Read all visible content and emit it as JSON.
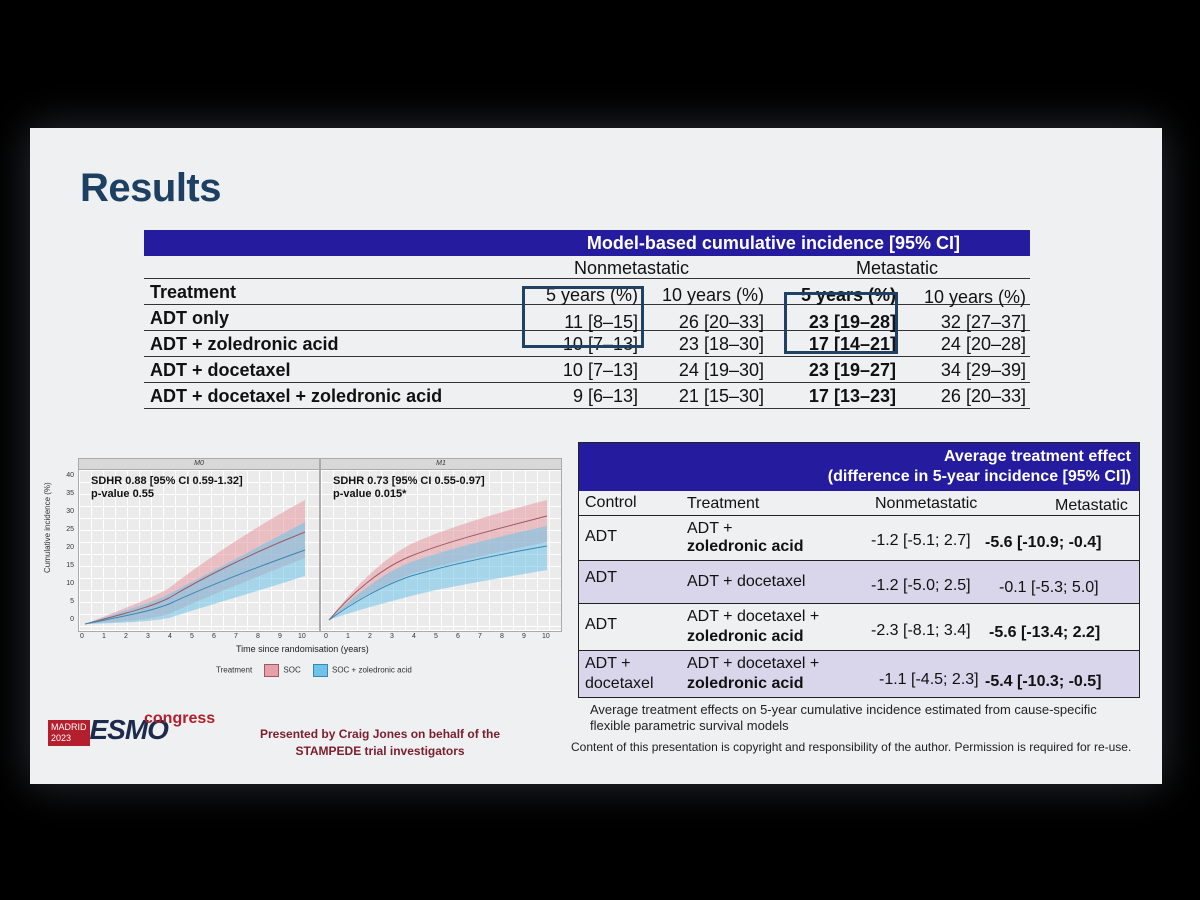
{
  "title": "Results",
  "table1": {
    "header": "Model-based cumulative incidence [95% CI]",
    "groups": [
      "Nonmetastatic",
      "Metastatic"
    ],
    "columns": [
      "Treatment",
      "5 years (%)",
      "10 years (%)",
      "5 years (%)",
      "10 years (%)"
    ],
    "rows": [
      [
        "ADT only",
        "11 [8–15]",
        "26 [20–33]",
        "23 [19–28]",
        "32 [27–37]"
      ],
      [
        "ADT + zoledronic acid",
        "10 [7–13]",
        "23 [18–30]",
        "17 [14–21]",
        "24 [20–28]"
      ],
      [
        "ADT + docetaxel",
        "10 [7–13]",
        "24 [19–30]",
        "23 [19–27]",
        "34 [29–39]"
      ],
      [
        "ADT + docetaxel + zoledronic acid",
        "9 [6–13]",
        "21 [15–30]",
        "17 [13–23]",
        "26 [20–33]"
      ]
    ]
  },
  "chart": {
    "panels": [
      {
        "strip": "M0",
        "ann1": "SDHR 0.88 [95% CI 0.59-1.32]",
        "ann2": "p-value 0.55"
      },
      {
        "strip": "M1",
        "ann1": "SDHR 0.73 [95% CI 0.55-0.97]",
        "ann2": "p-value 0.015*"
      }
    ],
    "ylabel": "Cumulative incidence (%)",
    "xlabel": "Time since randomisation (years)",
    "yticks": [
      "40",
      "35",
      "30",
      "25",
      "20",
      "15",
      "10",
      "5",
      "0"
    ],
    "xticks": [
      "0",
      "1",
      "2",
      "3",
      "4",
      "5",
      "6",
      "7",
      "8",
      "9",
      "10"
    ],
    "legend_title": "Treatment",
    "legend": [
      "SOC",
      "SOC + zoledronic acid"
    ],
    "colors": {
      "soc": "#e8a0a8",
      "zol": "#6ec3ea"
    }
  },
  "table2": {
    "header1": "Average treatment effect",
    "header2": "(difference in 5-year incidence [95% CI])",
    "columns": [
      "Control",
      "Treatment",
      "Nonmetastatic",
      "Metastatic"
    ],
    "rows": [
      {
        "control": [
          "ADT"
        ],
        "treatment": [
          "ADT +",
          "zoledronic acid"
        ],
        "non": "-1.2 [-5.1; 2.7]",
        "met": "-5.6 [-10.9; -0.4]"
      },
      {
        "control": [
          "ADT"
        ],
        "treatment": [
          "ADT + docetaxel"
        ],
        "non": "-1.2 [-5.0; 2.5]",
        "met": "-0.1 [-5.3; 5.0]"
      },
      {
        "control": [
          "ADT"
        ],
        "treatment": [
          "ADT + docetaxel +",
          "zoledronic acid"
        ],
        "non": "-2.3 [-8.1; 3.4]",
        "met": "-5.6 [-13.4; 2.2]"
      },
      {
        "control": [
          "ADT +",
          "docetaxel"
        ],
        "treatment": [
          "ADT + docetaxel +",
          "zoledronic acid"
        ],
        "non": "-1.1 [-4.5; 2.3]",
        "met": "-5.4 [-10.3; -0.5]"
      }
    ]
  },
  "footnote": "Average treatment effects on 5-year cumulative incidence estimated from cause-specific flexible parametric survival models",
  "copyright": "Content of this presentation is copyright and responsibility of the author. Permission is required for re-use.",
  "presented": [
    "Presented by Craig Jones on behalf of the",
    "STAMPEDE trial investigators"
  ],
  "logo": {
    "city": "MADRID",
    "year": "2023",
    "name": "ESMO",
    "suffix": "congress"
  }
}
